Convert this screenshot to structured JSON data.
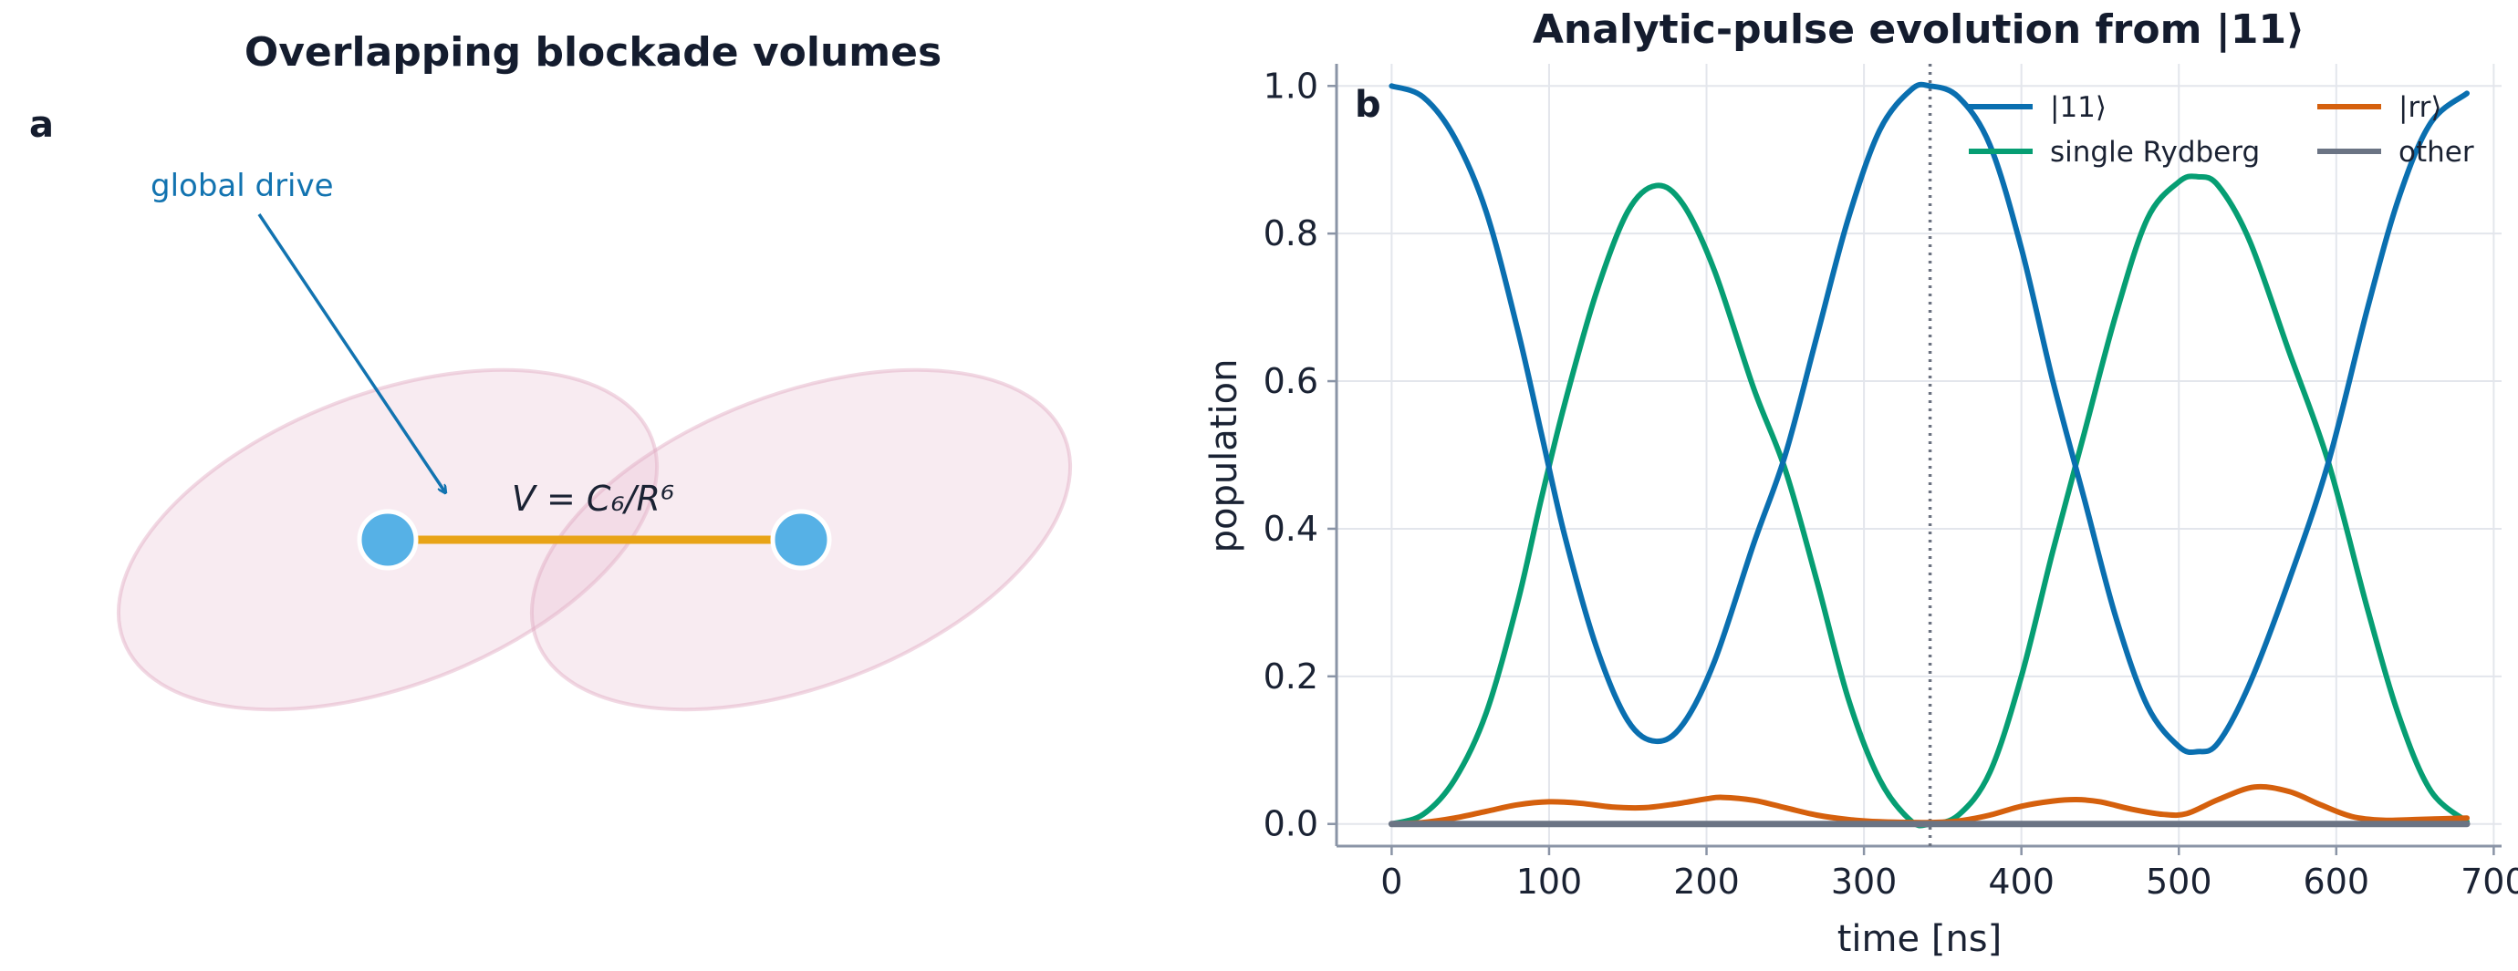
{
  "panel_a": {
    "letter": "a",
    "title": "Overlapping blockade volumes",
    "drive_label": "global drive",
    "interaction_label": "V = C₆/R⁶",
    "colors": {
      "atom": "#56b1e6",
      "bond": "#e8a317",
      "blockade": "#f2d7e3",
      "arrow": "#1273b0"
    }
  },
  "panel_b": {
    "letter": "b",
    "title": "Analytic-pulse evolution from |11⟩"
  },
  "chart_data": {
    "type": "line",
    "title": "Analytic-pulse evolution from |11⟩",
    "xlabel": "time [ns]",
    "ylabel": "population",
    "xlim": [
      -35,
      705
    ],
    "ylim": [
      -0.03,
      1.03
    ],
    "xticks": [
      0,
      100,
      200,
      300,
      400,
      500,
      600,
      700
    ],
    "yticks": [
      0.0,
      0.2,
      0.4,
      0.6,
      0.8,
      1.0
    ],
    "xtick_labels": [
      "0",
      "100",
      "200",
      "300",
      "400",
      "500",
      "600",
      "700"
    ],
    "ytick_labels": [
      "0.0",
      "0.2",
      "0.4",
      "0.6",
      "0.8",
      "1.0"
    ],
    "grid": true,
    "legend_position": "top-right",
    "vline_x": 342,
    "series": [
      {
        "name": "|11⟩",
        "color": "#0a6fb0",
        "x": [
          0,
          20,
          40,
          60,
          80,
          95,
          110,
          130,
          150,
          168,
          185,
          205,
          230,
          250,
          270,
          290,
          310,
          330,
          342,
          360,
          380,
          400,
          420,
          440,
          460,
          480,
          500,
          512,
          525,
          545,
          570,
          595,
          620,
          640,
          660,
          683
        ],
        "y": [
          1.0,
          0.985,
          0.93,
          0.83,
          0.67,
          0.53,
          0.39,
          0.24,
          0.14,
          0.112,
          0.135,
          0.22,
          0.38,
          0.5,
          0.66,
          0.82,
          0.94,
          0.995,
          1.0,
          0.985,
          0.92,
          0.78,
          0.6,
          0.44,
          0.28,
          0.16,
          0.105,
          0.098,
          0.11,
          0.19,
          0.33,
          0.49,
          0.7,
          0.85,
          0.95,
          0.99
        ]
      },
      {
        "name": "|rr⟩",
        "color": "#d5600d",
        "x": [
          0,
          20,
          40,
          60,
          80,
          100,
          120,
          140,
          160,
          180,
          200,
          210,
          230,
          250,
          270,
          290,
          310,
          330,
          342,
          360,
          380,
          400,
          420,
          435,
          450,
          470,
          490,
          505,
          525,
          548,
          570,
          590,
          610,
          630,
          650,
          683
        ],
        "y": [
          0.0,
          0.002,
          0.008,
          0.017,
          0.026,
          0.03,
          0.028,
          0.023,
          0.022,
          0.027,
          0.034,
          0.036,
          0.032,
          0.022,
          0.012,
          0.006,
          0.003,
          0.002,
          0.002,
          0.004,
          0.012,
          0.024,
          0.031,
          0.033,
          0.03,
          0.02,
          0.013,
          0.014,
          0.033,
          0.05,
          0.044,
          0.026,
          0.01,
          0.005,
          0.006,
          0.008
        ]
      },
      {
        "name": "single Rydberg",
        "color": "#069e73",
        "x": [
          0,
          20,
          40,
          60,
          80,
          95,
          110,
          130,
          150,
          168,
          185,
          205,
          230,
          250,
          270,
          290,
          310,
          330,
          342,
          360,
          380,
          400,
          420,
          440,
          460,
          480,
          500,
          512,
          525,
          545,
          570,
          595,
          620,
          640,
          660,
          683
        ],
        "y": [
          0.0,
          0.013,
          0.06,
          0.15,
          0.3,
          0.44,
          0.57,
          0.72,
          0.83,
          0.865,
          0.84,
          0.75,
          0.59,
          0.48,
          0.33,
          0.17,
          0.06,
          0.004,
          0.0,
          0.012,
          0.07,
          0.2,
          0.37,
          0.53,
          0.69,
          0.82,
          0.87,
          0.877,
          0.865,
          0.79,
          0.64,
          0.49,
          0.29,
          0.145,
          0.045,
          0.003
        ]
      },
      {
        "name": "other",
        "color": "#6b7484",
        "x": [
          0,
          683
        ],
        "y": [
          0.0,
          0.0
        ]
      }
    ]
  }
}
